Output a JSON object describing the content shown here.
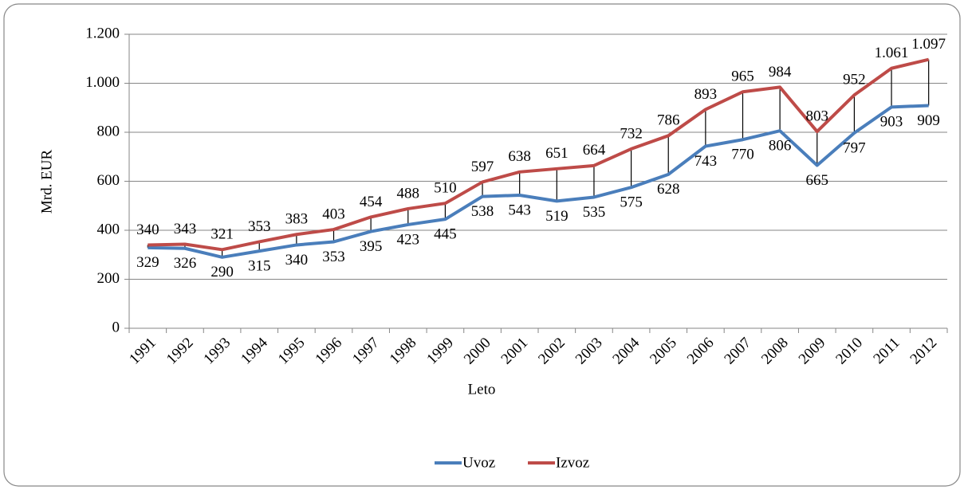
{
  "chart_data": {
    "type": "line",
    "x_label": "Leto",
    "y_label": "Mrd. EUR",
    "categories": [
      "1991",
      "1992",
      "1993",
      "1994",
      "1995",
      "1996",
      "1997",
      "1998",
      "1999",
      "2000",
      "2001",
      "2002",
      "2003",
      "2004",
      "2005",
      "2006",
      "2007",
      "2008",
      "2009",
      "2010",
      "2011",
      "2012"
    ],
    "series": [
      {
        "name": "Uvoz",
        "color": "#4a7ebb",
        "values": [
          329,
          326,
          290,
          315,
          340,
          353,
          395,
          423,
          445,
          538,
          543,
          519,
          535,
          575,
          628,
          743,
          770,
          806,
          665,
          797,
          903,
          909
        ]
      },
      {
        "name": "Izvoz",
        "color": "#be4b48",
        "values": [
          340,
          343,
          321,
          353,
          383,
          403,
          454,
          488,
          510,
          597,
          638,
          651,
          664,
          732,
          786,
          893,
          965,
          984,
          803,
          952,
          1061,
          1097
        ],
        "value_labels": [
          "340",
          "343",
          "321",
          "353",
          "383",
          "403",
          "454",
          "488",
          "510",
          "597",
          "638",
          "651",
          "664",
          "732",
          "786",
          "893",
          "965",
          "984",
          "803",
          "952",
          "1.061",
          "1.097"
        ]
      }
    ],
    "ylim": [
      0,
      1200
    ],
    "yticks": [
      0,
      200,
      400,
      600,
      800,
      {
        "value": 1000,
        "label": "1.000"
      },
      {
        "value": 1200,
        "label": "1.200"
      }
    ],
    "grid": true,
    "legend": "bottom",
    "drop_lines": true
  }
}
